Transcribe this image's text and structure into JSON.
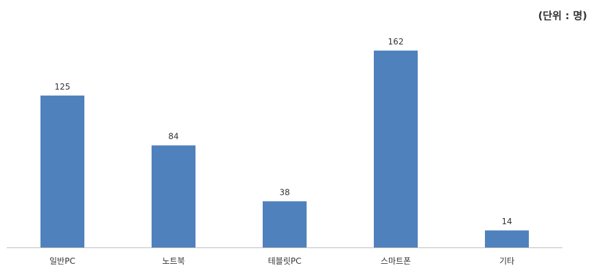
{
  "unit_note": "(단위 : 명)",
  "colors": {
    "bar": "#4f81bd",
    "axis": "#bfbfbf",
    "text": "#333333"
  },
  "chart_data": {
    "type": "bar",
    "categories": [
      "일반PC",
      "노트북",
      "테블릿PC",
      "스마트폰",
      "기타"
    ],
    "values": [
      125,
      84,
      38,
      162,
      14
    ],
    "data_labels": [
      "125",
      "84",
      "38",
      "162",
      "14"
    ],
    "title": "",
    "xlabel": "",
    "ylabel": "",
    "ylim": [
      0,
      162
    ],
    "grid": false,
    "legend": "none"
  }
}
